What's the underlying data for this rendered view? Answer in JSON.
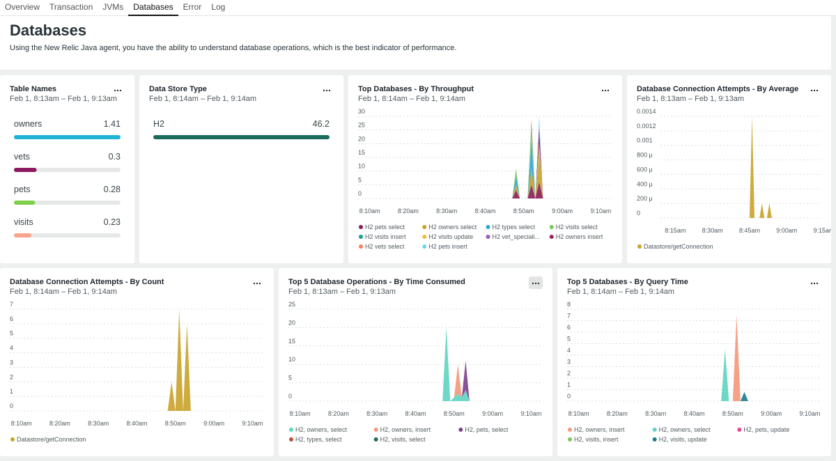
{
  "tabs": [
    "Overview",
    "Transaction",
    "JVMs",
    "Databases",
    "Error",
    "Log"
  ],
  "header": {
    "title": "Databases",
    "description": "Using the New Relic Java agent, you have the ability to understand database operations, which is the best indicator of performance."
  },
  "chart_data": [
    {
      "type": "bar",
      "title": "Table Names",
      "subtitle": "Feb 1, 8:13am – Feb 1, 9:13am",
      "categories": [
        "owners",
        "vets",
        "pets",
        "visits"
      ],
      "values": [
        1.41,
        0.3,
        0.28,
        0.23
      ],
      "colors": [
        "#1fb4d6",
        "#8c1a5e",
        "#7ed04b",
        "#f6a58c"
      ]
    },
    {
      "type": "bar",
      "title": "Data Store Type",
      "subtitle": "Feb 1, 8:14am – Feb 1, 9:14am",
      "categories": [
        "H2"
      ],
      "values": [
        46.2
      ],
      "colors": [
        "#1a6b5c"
      ]
    },
    {
      "type": "area",
      "title": "Top Databases - By Throughput",
      "subtitle": "Feb 1, 8:14am – Feb 1, 9:14am",
      "xlim": [
        "8:07am",
        "9:13am"
      ],
      "xticks": [
        "8:10am",
        "8:20am",
        "8:30am",
        "8:40am",
        "8:50am",
        "9:00am",
        "9:10am"
      ],
      "ylim": [
        0,
        30
      ],
      "yticks": [
        0,
        5,
        10,
        15,
        20,
        25,
        30
      ],
      "grid": true,
      "x": [
        "8:07am",
        "8:47am",
        "8:48am",
        "8:49am",
        "8:51am",
        "8:52am",
        "8:53am",
        "8:54am",
        "8:55am",
        "8:56am",
        "9:13am"
      ],
      "series": [
        {
          "name": "H2 pets select",
          "color": "#8b1a5a",
          "values": [
            0,
            0,
            3,
            0,
            0,
            5,
            0,
            6,
            0,
            0,
            0
          ]
        },
        {
          "name": "H2 owners select",
          "color": "#c9a227",
          "values": [
            0,
            0,
            2,
            0,
            0,
            6,
            0,
            10,
            0,
            0,
            0
          ]
        },
        {
          "name": "H2 types select",
          "color": "#2aa7d6",
          "values": [
            0,
            0,
            3,
            0,
            0,
            10,
            0,
            0,
            0,
            0,
            0
          ]
        },
        {
          "name": "H2 visits select",
          "color": "#7ac75a",
          "values": [
            0,
            0,
            3,
            0,
            0,
            5,
            0,
            2,
            0,
            0,
            0
          ]
        },
        {
          "name": "H2 visits insert",
          "color": "#1a9e8f",
          "values": [
            0,
            0,
            0,
            0,
            0,
            2,
            0,
            0,
            0,
            0,
            0
          ]
        },
        {
          "name": "H2 visits update",
          "color": "#f0c030",
          "values": [
            0,
            0,
            0,
            0,
            0,
            0,
            0,
            2,
            0,
            0,
            0
          ]
        },
        {
          "name": "H2 vet_speciali...",
          "color": "#9b59b6",
          "values": [
            0,
            0,
            0,
            0,
            0,
            0,
            0,
            0,
            0,
            0,
            0
          ]
        },
        {
          "name": "H2 owners insert",
          "color": "#a0205e",
          "values": [
            0,
            0,
            0,
            0,
            0,
            0,
            0,
            6,
            0,
            0,
            0
          ]
        },
        {
          "name": "H2 vets select",
          "color": "#ff7b5a",
          "values": [
            0,
            0,
            0,
            0,
            0,
            1,
            0,
            0,
            0,
            0,
            0
          ]
        },
        {
          "name": "H2 pets insert",
          "color": "#6fd3f0",
          "values": [
            0,
            0,
            0,
            0,
            0,
            0,
            0,
            4,
            0,
            0,
            0
          ]
        }
      ]
    },
    {
      "type": "area",
      "title": "Database Connection Attempts - By Average",
      "subtitle": "Feb 1, 8:13am – Feb 1, 9:13am",
      "xlim": [
        "8:09am",
        "9:14am"
      ],
      "xticks": [
        "8:15am",
        "8:30am",
        "8:45am",
        "9:00am",
        "9:15am"
      ],
      "ylim": [
        0,
        0.0014
      ],
      "yticks": [
        0,
        {
          "value": 0.0002,
          "label": "200 μ"
        },
        {
          "value": 0.0004,
          "label": "400 μ"
        },
        {
          "value": 0.0006,
          "label": "600 μ"
        },
        {
          "value": 0.0008,
          "label": "800 μ"
        },
        0.001,
        0.0012,
        0.0014
      ],
      "grid": true,
      "x": [
        "8:13am",
        "8:45am",
        "8:46am",
        "8:47am",
        "8:49am",
        "8:50am",
        "8:51am",
        "8:52am",
        "8:53am",
        "8:54am",
        "9:13am"
      ],
      "series": [
        {
          "name": "Datastore/getConnection",
          "color": "#c9a227",
          "values": [
            0,
            0,
            0.0014,
            0,
            0,
            0.0002,
            0,
            0,
            0.0002,
            0,
            0
          ]
        }
      ]
    },
    {
      "type": "area",
      "title": "Database Connection Attempts - By Count",
      "subtitle": "Feb 1, 8:14am – Feb 1, 9:14am",
      "xlim": [
        "8:07am",
        "9:13am"
      ],
      "xticks": [
        "8:10am",
        "8:20am",
        "8:30am",
        "8:40am",
        "8:50am",
        "9:00am",
        "9:10am"
      ],
      "ylim": [
        0,
        7
      ],
      "yticks": [
        0,
        1,
        2,
        3,
        4,
        5,
        6,
        7
      ],
      "grid": true,
      "x": [
        "8:07am",
        "8:48am",
        "8:49am",
        "8:50am",
        "8:51am",
        "8:52am",
        "8:53am",
        "8:54am",
        "9:13am"
      ],
      "series": [
        {
          "name": "Datastore/getConnection",
          "color": "#c9a227",
          "values": [
            0,
            0,
            2,
            0,
            7,
            0,
            6,
            0,
            0
          ]
        }
      ]
    },
    {
      "type": "area",
      "title": "Top 5 Database Operations - By Time Consumed",
      "subtitle": "Feb 1, 8:13am – Feb 1, 9:13am",
      "xlim": [
        "8:07am",
        "9:13am"
      ],
      "xticks": [
        "8:10am",
        "8:20am",
        "8:30am",
        "8:40am",
        "8:50am",
        "9:00am",
        "9:10am"
      ],
      "ylim": [
        0,
        25
      ],
      "yticks": [
        0,
        5,
        10,
        15,
        20,
        25
      ],
      "grid": true,
      "x": [
        "8:07am",
        "8:47am",
        "8:48am",
        "8:49am",
        "8:50am",
        "8:51am",
        "8:52am",
        "8:53am",
        "8:54am",
        "9:13am"
      ],
      "series": [
        {
          "name": "H2, owners, select",
          "color": "#5dd4c0",
          "values": [
            0,
            0,
            20,
            0,
            1,
            2,
            1,
            3,
            0,
            0
          ]
        },
        {
          "name": "H2, owners, insert",
          "color": "#f4977a",
          "values": [
            0,
            0,
            0,
            0,
            0,
            8,
            0,
            0,
            0,
            0
          ]
        },
        {
          "name": "H2, pets, select",
          "color": "#7b3f8c",
          "values": [
            0,
            0,
            0,
            0,
            0,
            0,
            0,
            8,
            0,
            0
          ]
        },
        {
          "name": "H2, types, select",
          "color": "#c0503a",
          "values": [
            0,
            0,
            0,
            0,
            0,
            0,
            0,
            0,
            0,
            0
          ]
        },
        {
          "name": "H2, visits, select",
          "color": "#1e6e5a",
          "values": [
            0,
            0,
            0,
            0,
            0,
            0,
            0,
            0,
            0,
            0
          ]
        }
      ]
    },
    {
      "type": "area",
      "title": "Top 5 Databases - By Query Time",
      "subtitle": "Feb 1, 8:14am – Feb 1, 9:14am",
      "xlim": [
        "8:07am",
        "9:13am"
      ],
      "xticks": [
        "8:10am",
        "8:20am",
        "8:30am",
        "8:40am",
        "8:50am",
        "9:00am",
        "9:10am"
      ],
      "ylim": [
        0,
        8
      ],
      "yticks": [
        0,
        1,
        2,
        3,
        4,
        5,
        6,
        7,
        8
      ],
      "grid": true,
      "x": [
        "8:07am",
        "8:47am",
        "8:48am",
        "8:49am",
        "8:50am",
        "8:51am",
        "8:52am",
        "8:53am",
        "8:54am",
        "9:13am"
      ],
      "series": [
        {
          "name": "H2, owners, insert",
          "color": "#f4977a",
          "values": [
            0,
            0,
            0,
            0,
            0,
            7.5,
            0,
            0,
            0,
            0
          ]
        },
        {
          "name": "H2, owners, select",
          "color": "#5dd4c0",
          "values": [
            0,
            0,
            4.5,
            0,
            0,
            0,
            0,
            0,
            0,
            0
          ]
        },
        {
          "name": "H2, pets, update",
          "color": "#e84393",
          "values": [
            0,
            0,
            0,
            0,
            0,
            0,
            0,
            0,
            0,
            0
          ]
        },
        {
          "name": "H2, visits, insert",
          "color": "#7ac75a",
          "values": [
            0,
            0,
            0,
            0,
            0,
            0,
            0,
            0,
            0,
            0
          ]
        },
        {
          "name": "H2, visits, update",
          "color": "#1b7c8c",
          "values": [
            0,
            0,
            0,
            0,
            0,
            0,
            0,
            0.8,
            0,
            0
          ]
        }
      ]
    }
  ]
}
